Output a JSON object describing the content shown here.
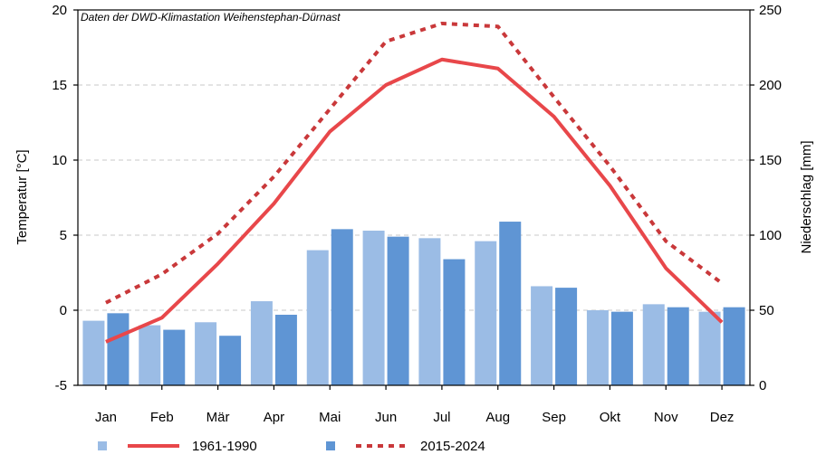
{
  "chart_data": {
    "type": "bar+line",
    "annotation": "Daten der DWD-Klimastation Weihenstephan-Dürnast",
    "categories": [
      "Jan",
      "Feb",
      "Mär",
      "Apr",
      "Mai",
      "Jun",
      "Jul",
      "Aug",
      "Sep",
      "Okt",
      "Nov",
      "Dez"
    ],
    "left_axis": {
      "label": "Temperatur [°C]",
      "range": [
        -5,
        20
      ],
      "ticks": [
        -5,
        0,
        5,
        10,
        15,
        20
      ]
    },
    "right_axis": {
      "label": "Niederschlag [mm]",
      "range": [
        0,
        250
      ],
      "ticks": [
        0,
        50,
        100,
        150,
        200,
        250
      ]
    },
    "grid": "horizontal dashed",
    "legend_position": "bottom",
    "series": [
      {
        "name": "1961-1990",
        "kind": "precipitation-bars",
        "axis": "right",
        "color": "#9bbce5",
        "values": [
          43,
          40,
          42,
          56,
          90,
          103,
          98,
          96,
          66,
          50,
          54,
          49
        ]
      },
      {
        "name": "2015-2024",
        "kind": "precipitation-bars",
        "axis": "right",
        "color": "#5f95d4",
        "values": [
          48,
          37,
          33,
          47,
          104,
          99,
          84,
          109,
          65,
          49,
          52,
          52
        ]
      },
      {
        "name": "1961-1990",
        "kind": "temperature-line",
        "axis": "left",
        "color": "#e8474a",
        "style": "solid",
        "values": [
          -2.1,
          -0.5,
          3.1,
          7.1,
          11.9,
          15.0,
          16.7,
          16.1,
          12.9,
          8.3,
          2.8,
          -0.8
        ]
      },
      {
        "name": "2015-2024",
        "kind": "temperature-line",
        "axis": "left",
        "color": "#c9383a",
        "style": "dotted",
        "values": [
          0.5,
          2.4,
          5.1,
          8.9,
          13.4,
          17.9,
          19.1,
          18.9,
          14.2,
          9.6,
          4.6,
          1.8
        ]
      }
    ],
    "legend": [
      {
        "label": "1961-1990",
        "bar_color": "#9bbce5",
        "line_color": "#e8474a",
        "line_style": "solid"
      },
      {
        "label": "2015-2024",
        "bar_color": "#5f95d4",
        "line_color": "#c9383a",
        "line_style": "dotted"
      }
    ]
  }
}
